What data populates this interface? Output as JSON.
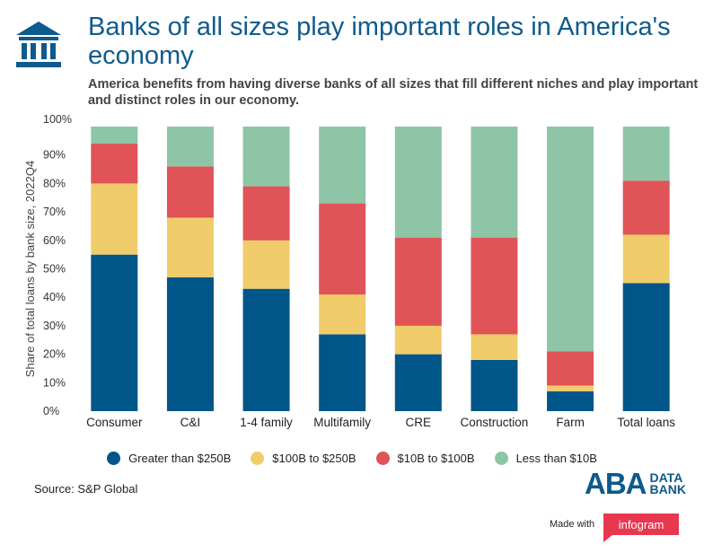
{
  "header": {
    "icon": "bank-icon",
    "title": "Banks of all sizes play important roles in America's economy",
    "subtitle": "America benefits from having diverse banks of all sizes that fill different niches and play important and distinct roles in our economy."
  },
  "chart_data": {
    "type": "bar",
    "stacked": true,
    "categories": [
      "Consumer",
      "C&I",
      "1-4 family",
      "Multifamily",
      "CRE",
      "Construction",
      "Farm",
      "Total loans"
    ],
    "series": [
      {
        "name": "Greater than $250B",
        "color": "#005689",
        "values": [
          55,
          47,
          43,
          27,
          20,
          18,
          7,
          45
        ]
      },
      {
        "name": "$100B to $250B",
        "color": "#f0cc6b",
        "values": [
          25,
          21,
          17,
          14,
          10,
          9,
          2,
          17
        ]
      },
      {
        "name": "$10B to $100B",
        "color": "#e05357",
        "values": [
          14,
          18,
          19,
          32,
          31,
          34,
          12,
          19
        ]
      },
      {
        "name": "Less than $10B",
        "color": "#8fc5a7",
        "values": [
          6,
          14,
          21,
          27,
          39,
          39,
          79,
          19
        ]
      }
    ],
    "ylabel": "Share of total loans by bank size, 2022Q4",
    "yticks": [
      "0%",
      "10%",
      "20%",
      "30%",
      "40%",
      "50%",
      "60%",
      "70%",
      "80%",
      "90%",
      "100%"
    ],
    "ylim": [
      0,
      100
    ],
    "grid": false,
    "legend_position": "bottom"
  },
  "footer": {
    "source": "Source: S&P Global",
    "logo": {
      "word": "ABA",
      "line1": "DATA",
      "line2": "BANK"
    },
    "made_with": "Made with",
    "infogram": "infogram"
  }
}
